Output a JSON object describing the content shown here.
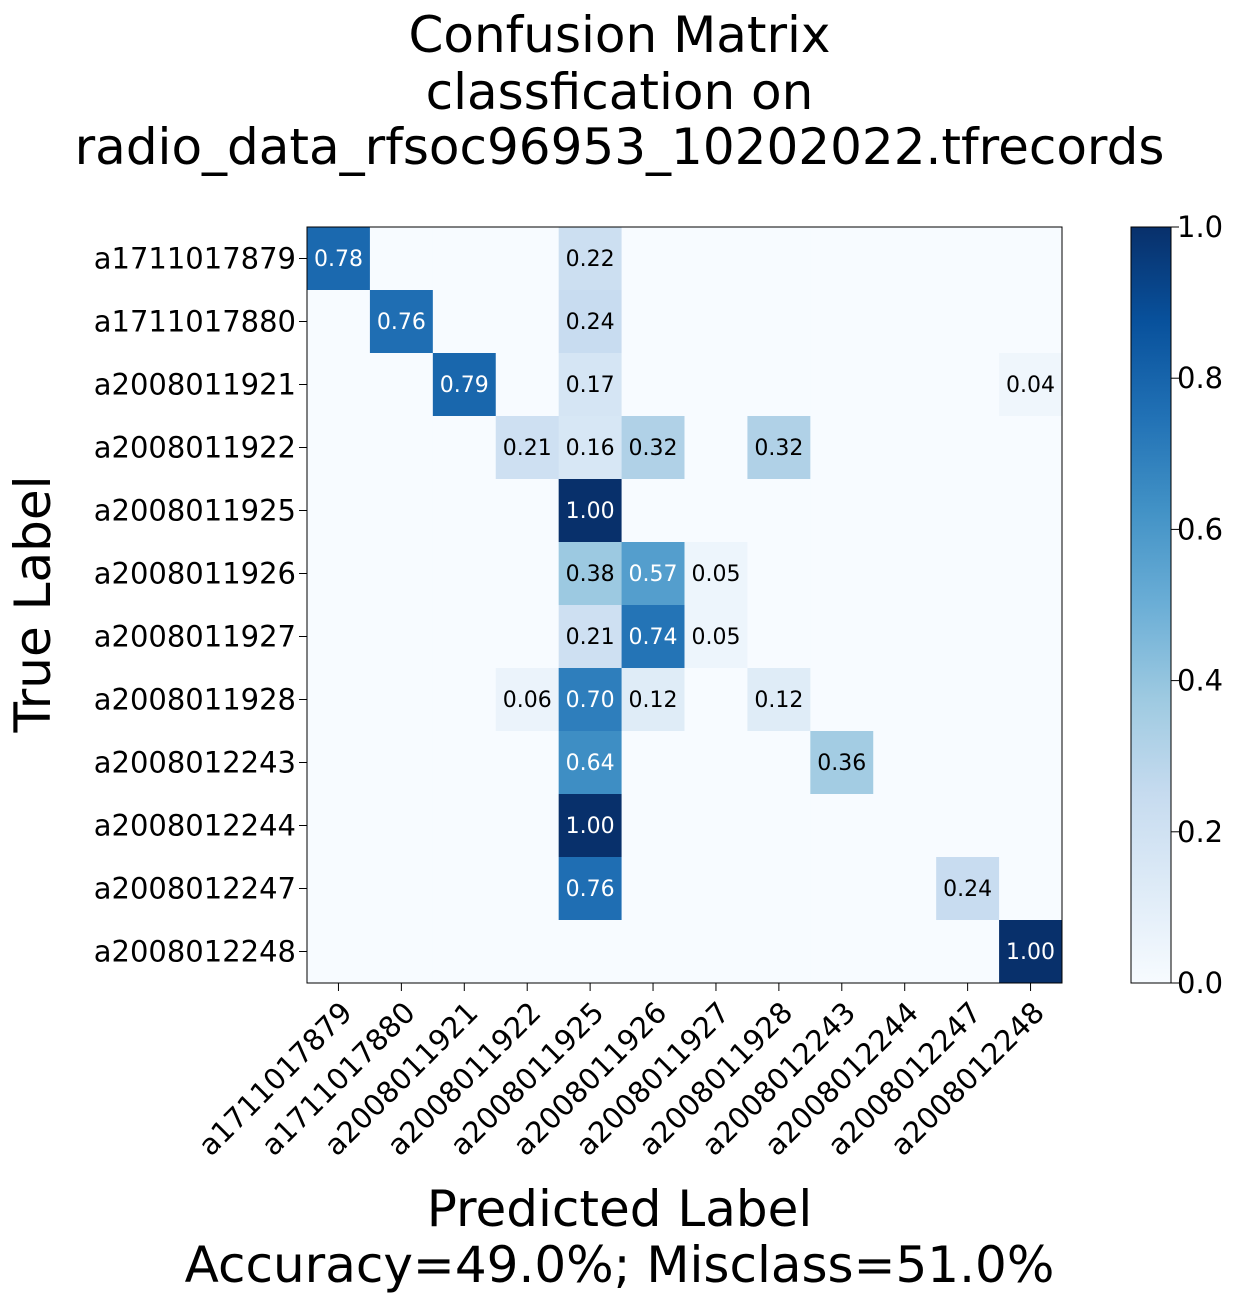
{
  "chart_data": {
    "type": "heatmap",
    "title": [
      "Confusion Matrix",
      "classfication on",
      "radio_data_rfsoc96953_10202022.tfrecords"
    ],
    "xlabel": "Predicted Label",
    "xlabel_sub": "Accuracy=49.0%; Misclass=51.0%",
    "ylabel": "True Label",
    "categories": [
      "a1711017879",
      "a1711017880",
      "a2008011921",
      "a2008011922",
      "a2008011925",
      "a2008011926",
      "a2008011927",
      "a2008011928",
      "a2008012243",
      "a2008012244",
      "a2008012247",
      "a2008012248"
    ],
    "values": [
      [
        0.78,
        0,
        0,
        0,
        0.22,
        0,
        0,
        0,
        0,
        0,
        0,
        0
      ],
      [
        0,
        0.76,
        0,
        0,
        0.24,
        0,
        0,
        0,
        0,
        0,
        0,
        0
      ],
      [
        0,
        0,
        0.79,
        0,
        0.17,
        0,
        0,
        0,
        0,
        0,
        0,
        0.04
      ],
      [
        0,
        0,
        0,
        0.21,
        0.16,
        0.32,
        0,
        0.32,
        0,
        0,
        0,
        0
      ],
      [
        0,
        0,
        0,
        0,
        1.0,
        0,
        0,
        0,
        0,
        0,
        0,
        0
      ],
      [
        0,
        0,
        0,
        0,
        0.38,
        0.57,
        0.05,
        0,
        0,
        0,
        0,
        0
      ],
      [
        0,
        0,
        0,
        0,
        0.21,
        0.74,
        0.05,
        0,
        0,
        0,
        0,
        0
      ],
      [
        0,
        0,
        0,
        0.06,
        0.7,
        0.12,
        0,
        0.12,
        0,
        0,
        0,
        0
      ],
      [
        0,
        0,
        0,
        0,
        0.64,
        0,
        0,
        0,
        0.36,
        0,
        0,
        0
      ],
      [
        0,
        0,
        0,
        0,
        1.0,
        0,
        0,
        0,
        0,
        0,
        0,
        0
      ],
      [
        0,
        0,
        0,
        0,
        0.76,
        0,
        0,
        0,
        0,
        0,
        0.24,
        0
      ],
      [
        0,
        0,
        0,
        0,
        0,
        0,
        0,
        0,
        0,
        0,
        0,
        1.0
      ]
    ],
    "colorbar": {
      "range": [
        0,
        1
      ],
      "ticks": [
        "0.0",
        "0.2",
        "0.4",
        "0.6",
        "0.8",
        "1.0"
      ],
      "colormap": "Blues"
    }
  }
}
